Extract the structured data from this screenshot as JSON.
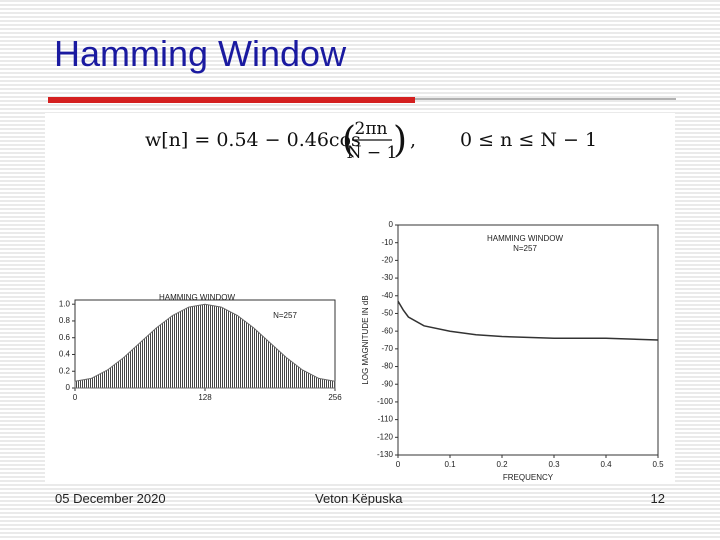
{
  "slide": {
    "title": "Hamming Window",
    "formula": {
      "lhs": "w[n] = 0.54 − 0.46cos",
      "numerator": "2πn",
      "denominator": "N − 1",
      "separator": ",",
      "condition": "0 ≤ n ≤ N − 1"
    },
    "footer": {
      "date": "05 December 2020",
      "author": "Veton Këpuska",
      "page": 12
    }
  },
  "chart_data": [
    {
      "type": "area",
      "title": "HAMMING WINDOW",
      "annotation": "N=257",
      "color": "#6a6a6a",
      "x": [
        0,
        16,
        32,
        48,
        64,
        80,
        96,
        112,
        128,
        144,
        160,
        176,
        192,
        208,
        224,
        240,
        256
      ],
      "values": [
        0.08,
        0.115,
        0.215,
        0.364,
        0.54,
        0.716,
        0.865,
        0.965,
        1.0,
        0.965,
        0.865,
        0.716,
        0.54,
        0.364,
        0.215,
        0.115,
        0.08
      ],
      "xlim": [
        0,
        256
      ],
      "xticks": [
        0,
        128,
        256
      ],
      "ylim": [
        0,
        1.05
      ],
      "yticks": [
        0,
        0.2,
        0.4,
        0.6,
        0.8,
        {
          "value": 1,
          "label": "1.0"
        }
      ]
    },
    {
      "type": "line",
      "title": "HAMMING WINDOW",
      "annotation": "N=257",
      "color": "#333333",
      "xlabel": "FREQUENCY",
      "ylabel": "LOG MAGNITUDE IN dB",
      "x": [
        0,
        0.01,
        0.02,
        0.05,
        0.1,
        0.15,
        0.2,
        0.3,
        0.4,
        0.5
      ],
      "values": [
        -43,
        -48,
        -52,
        -57,
        -60,
        -62,
        -63,
        -64,
        -64,
        -65
      ],
      "xlim": [
        0,
        0.5
      ],
      "xticks": [
        0,
        0.1,
        0.2,
        0.3,
        0.4,
        0.5
      ],
      "ylim": [
        -130,
        0
      ],
      "yticks": [
        0,
        -10,
        -20,
        -30,
        -40,
        -50,
        -60,
        -70,
        -80,
        -90,
        -100,
        -110,
        -120,
        -130
      ]
    }
  ]
}
